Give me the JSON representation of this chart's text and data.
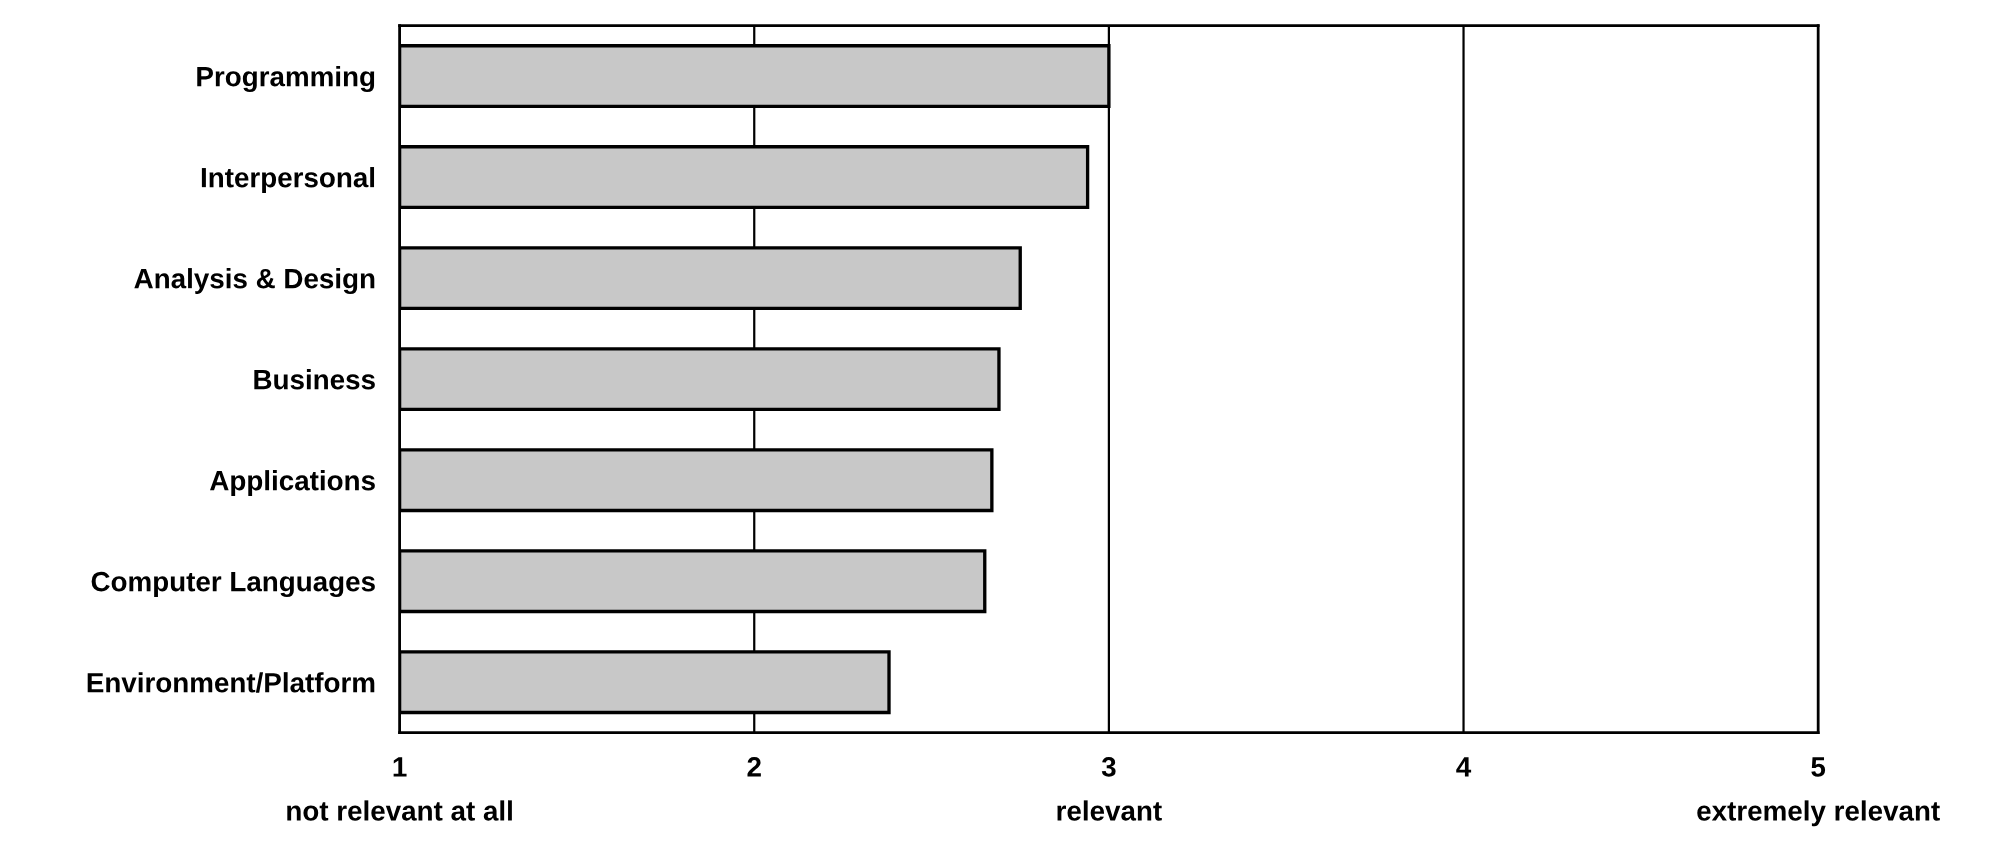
{
  "chart_data": {
    "type": "bar",
    "orientation": "horizontal",
    "categories": [
      "Programming",
      "Interpersonal",
      "Analysis & Design",
      "Business",
      "Applications",
      "Computer Languages",
      "Environment/Platform"
    ],
    "values": [
      3.0,
      2.94,
      2.75,
      2.69,
      2.67,
      2.65,
      2.38
    ],
    "color": "#c8c8c8",
    "xlim": [
      1,
      5
    ],
    "xticks": [
      {
        "value": 1,
        "label": "1\nnot relevant at all"
      },
      2,
      {
        "value": 3,
        "label": "3\nrelevant"
      },
      4,
      {
        "value": 5,
        "label": "5\nextremely relevant"
      }
    ],
    "grid": "x"
  }
}
